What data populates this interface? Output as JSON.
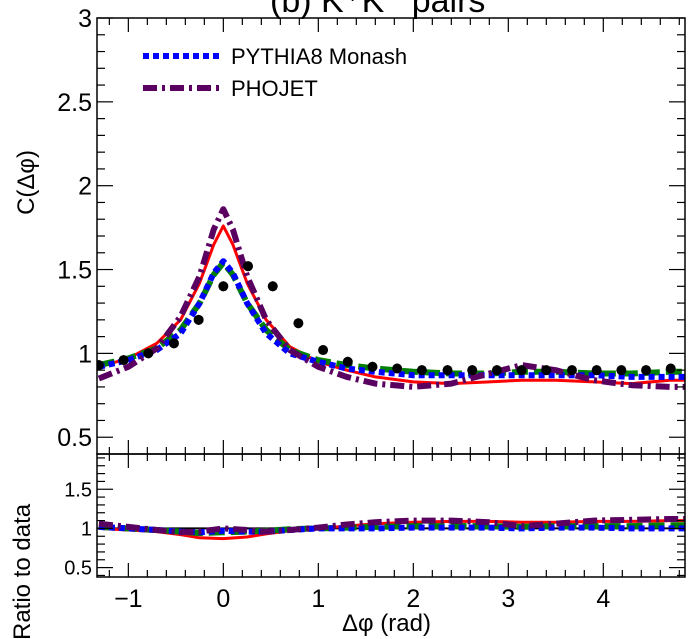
{
  "chart_data": [
    {
      "type": "line",
      "title": "(b) K⁺K⁻ pairs",
      "xlabel": "",
      "ylabel": "C(Δφ)",
      "xlim": [
        -1.33,
        4.86
      ],
      "ylim": [
        0.4,
        3.0
      ],
      "y_ticks": [
        0.5,
        1,
        1.5,
        2,
        2.5,
        3
      ],
      "y_tick_labels": [
        "0.5",
        "1",
        "1.5",
        "2",
        "2.5",
        "3"
      ],
      "grid": false,
      "legend_position": "top-left",
      "legend": [
        {
          "label": "PYTHIA8 Monash",
          "color": "#0000ff",
          "style": "dotted"
        },
        {
          "label": "PHOJET",
          "color": "#5a0060",
          "style": "dashdot"
        }
      ],
      "data_points": {
        "color": "#000000",
        "x": [
          -1.31,
          -1.05,
          -0.79,
          -0.52,
          -0.26,
          0.0,
          0.26,
          0.52,
          0.79,
          1.05,
          1.31,
          1.57,
          1.83,
          2.09,
          2.36,
          2.62,
          2.88,
          3.14,
          3.4,
          3.67,
          3.93,
          4.19,
          4.45,
          4.71
        ],
        "y": [
          0.93,
          0.96,
          1.0,
          1.06,
          1.2,
          1.4,
          1.52,
          1.4,
          1.18,
          1.02,
          0.95,
          0.92,
          0.91,
          0.9,
          0.9,
          0.9,
          0.9,
          0.9,
          0.9,
          0.9,
          0.9,
          0.9,
          0.9,
          0.91
        ]
      },
      "series": [
        {
          "color": "#ff0000",
          "style": "solid",
          "x": [
            -1.31,
            -1.0,
            -0.7,
            -0.45,
            -0.25,
            -0.1,
            0.0,
            0.1,
            0.25,
            0.45,
            0.7,
            1.0,
            1.3,
            1.6,
            2.0,
            2.4,
            2.8,
            3.14,
            3.5,
            3.9,
            4.3,
            4.7,
            4.86
          ],
          "y": [
            0.92,
            0.97,
            1.06,
            1.2,
            1.42,
            1.65,
            1.76,
            1.65,
            1.42,
            1.2,
            1.04,
            0.95,
            0.9,
            0.86,
            0.83,
            0.82,
            0.83,
            0.84,
            0.84,
            0.83,
            0.82,
            0.84,
            0.84
          ]
        },
        {
          "color": "#008000",
          "style": "dashed",
          "x": [
            -1.31,
            -1.0,
            -0.7,
            -0.45,
            -0.25,
            -0.1,
            0.0,
            0.1,
            0.25,
            0.45,
            0.7,
            1.0,
            1.3,
            1.6,
            2.0,
            2.4,
            2.8,
            3.14,
            3.5,
            3.9,
            4.3,
            4.7,
            4.86
          ],
          "y": [
            0.93,
            0.97,
            1.03,
            1.14,
            1.3,
            1.47,
            1.54,
            1.47,
            1.3,
            1.14,
            1.02,
            0.96,
            0.93,
            0.91,
            0.89,
            0.88,
            0.88,
            0.89,
            0.89,
            0.88,
            0.88,
            0.89,
            0.89
          ]
        },
        {
          "name": "PYTHIA8 Monash",
          "color": "#0000ff",
          "style": "dotted",
          "x": [
            -1.31,
            -1.0,
            -0.7,
            -0.45,
            -0.25,
            -0.1,
            0.0,
            0.1,
            0.25,
            0.45,
            0.7,
            1.0,
            1.3,
            1.6,
            2.0,
            2.4,
            2.8,
            3.14,
            3.5,
            3.9,
            4.3,
            4.7,
            4.86
          ],
          "y": [
            0.92,
            0.96,
            1.02,
            1.12,
            1.3,
            1.48,
            1.55,
            1.48,
            1.3,
            1.12,
            1.0,
            0.95,
            0.91,
            0.89,
            0.87,
            0.87,
            0.87,
            0.87,
            0.87,
            0.87,
            0.86,
            0.86,
            0.86
          ]
        },
        {
          "name": "PHOJET",
          "color": "#5a0060",
          "style": "dashdot",
          "x": [
            -1.31,
            -1.0,
            -0.7,
            -0.45,
            -0.25,
            -0.1,
            0.0,
            0.1,
            0.25,
            0.45,
            0.7,
            1.0,
            1.3,
            1.6,
            2.0,
            2.4,
            2.8,
            3.14,
            3.5,
            3.9,
            4.3,
            4.7,
            4.86
          ],
          "y": [
            0.85,
            0.92,
            1.03,
            1.22,
            1.46,
            1.74,
            1.86,
            1.74,
            1.46,
            1.2,
            1.02,
            0.92,
            0.86,
            0.82,
            0.8,
            0.82,
            0.88,
            0.93,
            0.9,
            0.84,
            0.81,
            0.8,
            0.8
          ]
        }
      ]
    },
    {
      "type": "line",
      "title": "",
      "xlabel": "Δφ (rad)",
      "ylabel": "Ratio to data",
      "xlim": [
        -1.33,
        4.86
      ],
      "ylim": [
        0.38,
        1.95
      ],
      "y_ticks": [
        0.5,
        1,
        1.5
      ],
      "y_tick_labels": [
        "0.5",
        "1",
        "1.5"
      ],
      "x_ticks": [
        -1,
        0,
        1,
        2,
        3,
        4
      ],
      "x_tick_labels": [
        "−1",
        "0",
        "1",
        "2",
        "3",
        "4"
      ],
      "reference_line": 1.0,
      "grid": false,
      "series": [
        {
          "color": "#ff0000",
          "style": "solid",
          "x": [
            -1.31,
            -1.0,
            -0.7,
            -0.45,
            -0.25,
            0.0,
            0.25,
            0.45,
            0.7,
            1.0,
            1.3,
            1.6,
            2.0,
            2.4,
            2.8,
            3.14,
            3.5,
            3.9,
            4.3,
            4.7,
            4.86
          ],
          "y": [
            1.0,
            0.98,
            0.96,
            0.92,
            0.88,
            0.87,
            0.89,
            0.93,
            0.97,
            1.0,
            1.03,
            1.06,
            1.08,
            1.09,
            1.09,
            1.08,
            1.08,
            1.09,
            1.09,
            1.1,
            1.1
          ]
        },
        {
          "color": "#008000",
          "style": "dashed",
          "x": [
            -1.31,
            -1.0,
            -0.7,
            -0.45,
            -0.25,
            0.0,
            0.25,
            0.45,
            0.7,
            1.0,
            1.3,
            1.6,
            2.0,
            2.4,
            2.8,
            3.14,
            3.5,
            3.9,
            4.3,
            4.7,
            4.86
          ],
          "y": [
            1.02,
            1.0,
            0.98,
            0.96,
            0.94,
            0.95,
            0.96,
            0.97,
            0.99,
            1.0,
            1.01,
            1.02,
            1.03,
            1.03,
            1.03,
            1.02,
            1.03,
            1.03,
            1.03,
            1.04,
            1.04
          ]
        },
        {
          "name": "PYTHIA8 Monash",
          "color": "#0000ff",
          "style": "dotted",
          "x": [
            -1.31,
            -1.0,
            -0.7,
            -0.45,
            -0.25,
            0.0,
            0.25,
            0.45,
            0.7,
            1.0,
            1.3,
            1.6,
            2.0,
            2.4,
            2.8,
            3.14,
            3.5,
            3.9,
            4.3,
            4.7,
            4.86
          ],
          "y": [
            1.02,
            1.0,
            0.98,
            0.96,
            0.95,
            0.97,
            0.96,
            0.96,
            0.98,
            1.0,
            1.0,
            1.0,
            1.01,
            1.01,
            1.01,
            1.0,
            1.01,
            1.01,
            1.0,
            1.0,
            1.0
          ]
        },
        {
          "name": "PHOJET",
          "color": "#5a0060",
          "style": "dashdot",
          "x": [
            -1.31,
            -1.0,
            -0.7,
            -0.45,
            -0.25,
            0.0,
            0.25,
            0.45,
            0.7,
            1.0,
            1.3,
            1.6,
            2.0,
            2.4,
            2.8,
            3.14,
            3.5,
            3.9,
            4.3,
            4.7,
            4.86
          ],
          "y": [
            1.06,
            1.02,
            0.98,
            0.95,
            0.96,
            1.0,
            0.98,
            0.96,
            0.98,
            1.01,
            1.05,
            1.08,
            1.1,
            1.1,
            1.08,
            1.03,
            1.06,
            1.1,
            1.11,
            1.12,
            1.12
          ]
        }
      ]
    }
  ]
}
